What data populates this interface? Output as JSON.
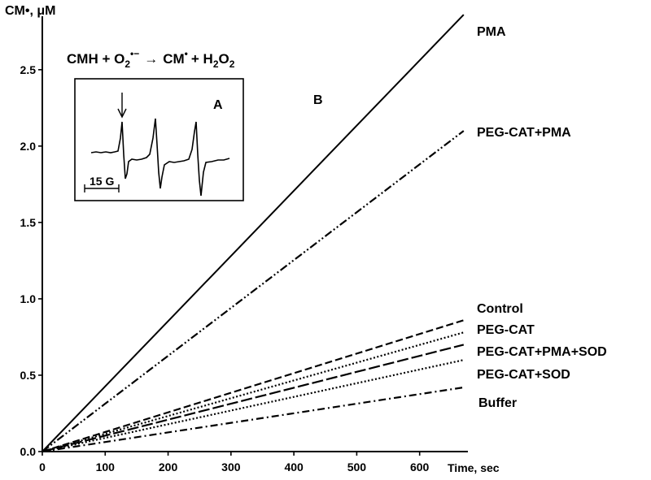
{
  "chart_data": {
    "type": "line",
    "ylabel": "CM•, μM",
    "xlabel": "Time, sec",
    "panel_label": "B",
    "equation": {
      "part1": "CMH + O",
      "part1_sub": "2",
      "part1_sup": "•−",
      "arrow": "→",
      "part2": "CM",
      "part2_sup": "•",
      "part3": "+ H",
      "part3_sub": "2",
      "part3_o": "O",
      "part3_o_sub": "2"
    },
    "xlim": [
      0,
      680
    ],
    "ylim": [
      0,
      2.85
    ],
    "x_ticks": [
      0,
      100,
      200,
      300,
      400,
      500,
      600
    ],
    "y_ticks": [
      0.0,
      0.5,
      1.0,
      1.5,
      2.0,
      2.5
    ],
    "y_tick_labels": [
      "0.0",
      "0.5",
      "1.0",
      "1.5",
      "2.0",
      "2.5"
    ],
    "grid": false,
    "series": [
      {
        "name": "PMA",
        "style": "solid",
        "x": [
          0,
          670
        ],
        "y": [
          0,
          2.86
        ]
      },
      {
        "name": "PEG-CAT+PMA",
        "style": "dashdotdot",
        "x": [
          0,
          670
        ],
        "y": [
          0,
          2.1
        ]
      },
      {
        "name": "Control",
        "style": "dashed",
        "x": [
          0,
          670
        ],
        "y": [
          0,
          0.86
        ]
      },
      {
        "name": "PEG-CAT",
        "style": "dotted",
        "x": [
          0,
          670
        ],
        "y": [
          0,
          0.78
        ]
      },
      {
        "name": "PEG-CAT+PMA+SOD",
        "style": "longdash",
        "x": [
          0,
          670
        ],
        "y": [
          0,
          0.7
        ]
      },
      {
        "name": "PEG-CAT+SOD",
        "style": "dotted",
        "x": [
          0,
          670
        ],
        "y": [
          0,
          0.6
        ]
      },
      {
        "name": "Buffer",
        "style": "dashdot",
        "x": [
          0,
          670
        ],
        "y": [
          0,
          0.42
        ]
      }
    ],
    "inset": {
      "label": "A",
      "scale_label": "15 G"
    }
  }
}
